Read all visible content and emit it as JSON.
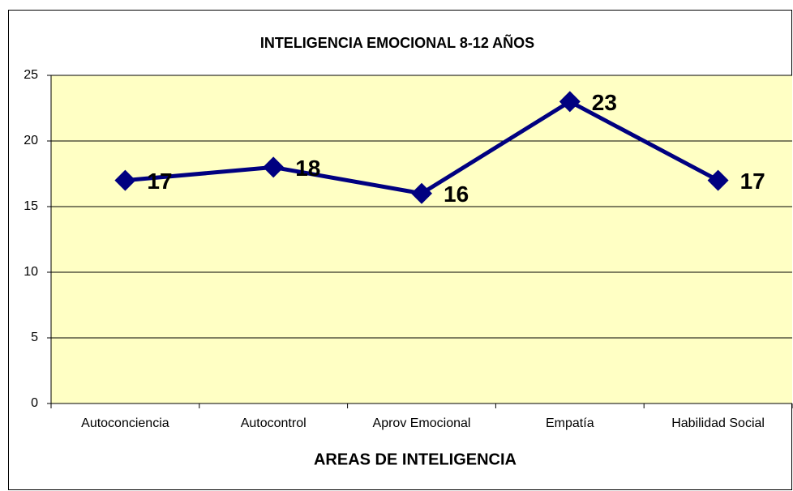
{
  "chart_data": {
    "type": "line",
    "title": "INTELIGENCIA EMOCIONAL 8-12 AÑOS",
    "x_label": "AREAS DE INTELIGENCIA",
    "categories": [
      "Autoconciencia",
      "Autocontrol",
      "Aprov Emocional",
      "Empatía",
      "Habilidad Social"
    ],
    "values": [
      17,
      18,
      16,
      23,
      17
    ],
    "color": "#000080",
    "label_color": "#ff0000",
    "ylim": [
      0,
      25
    ],
    "yticks": [
      0,
      5,
      10,
      15,
      20,
      25
    ],
    "grid": true
  }
}
